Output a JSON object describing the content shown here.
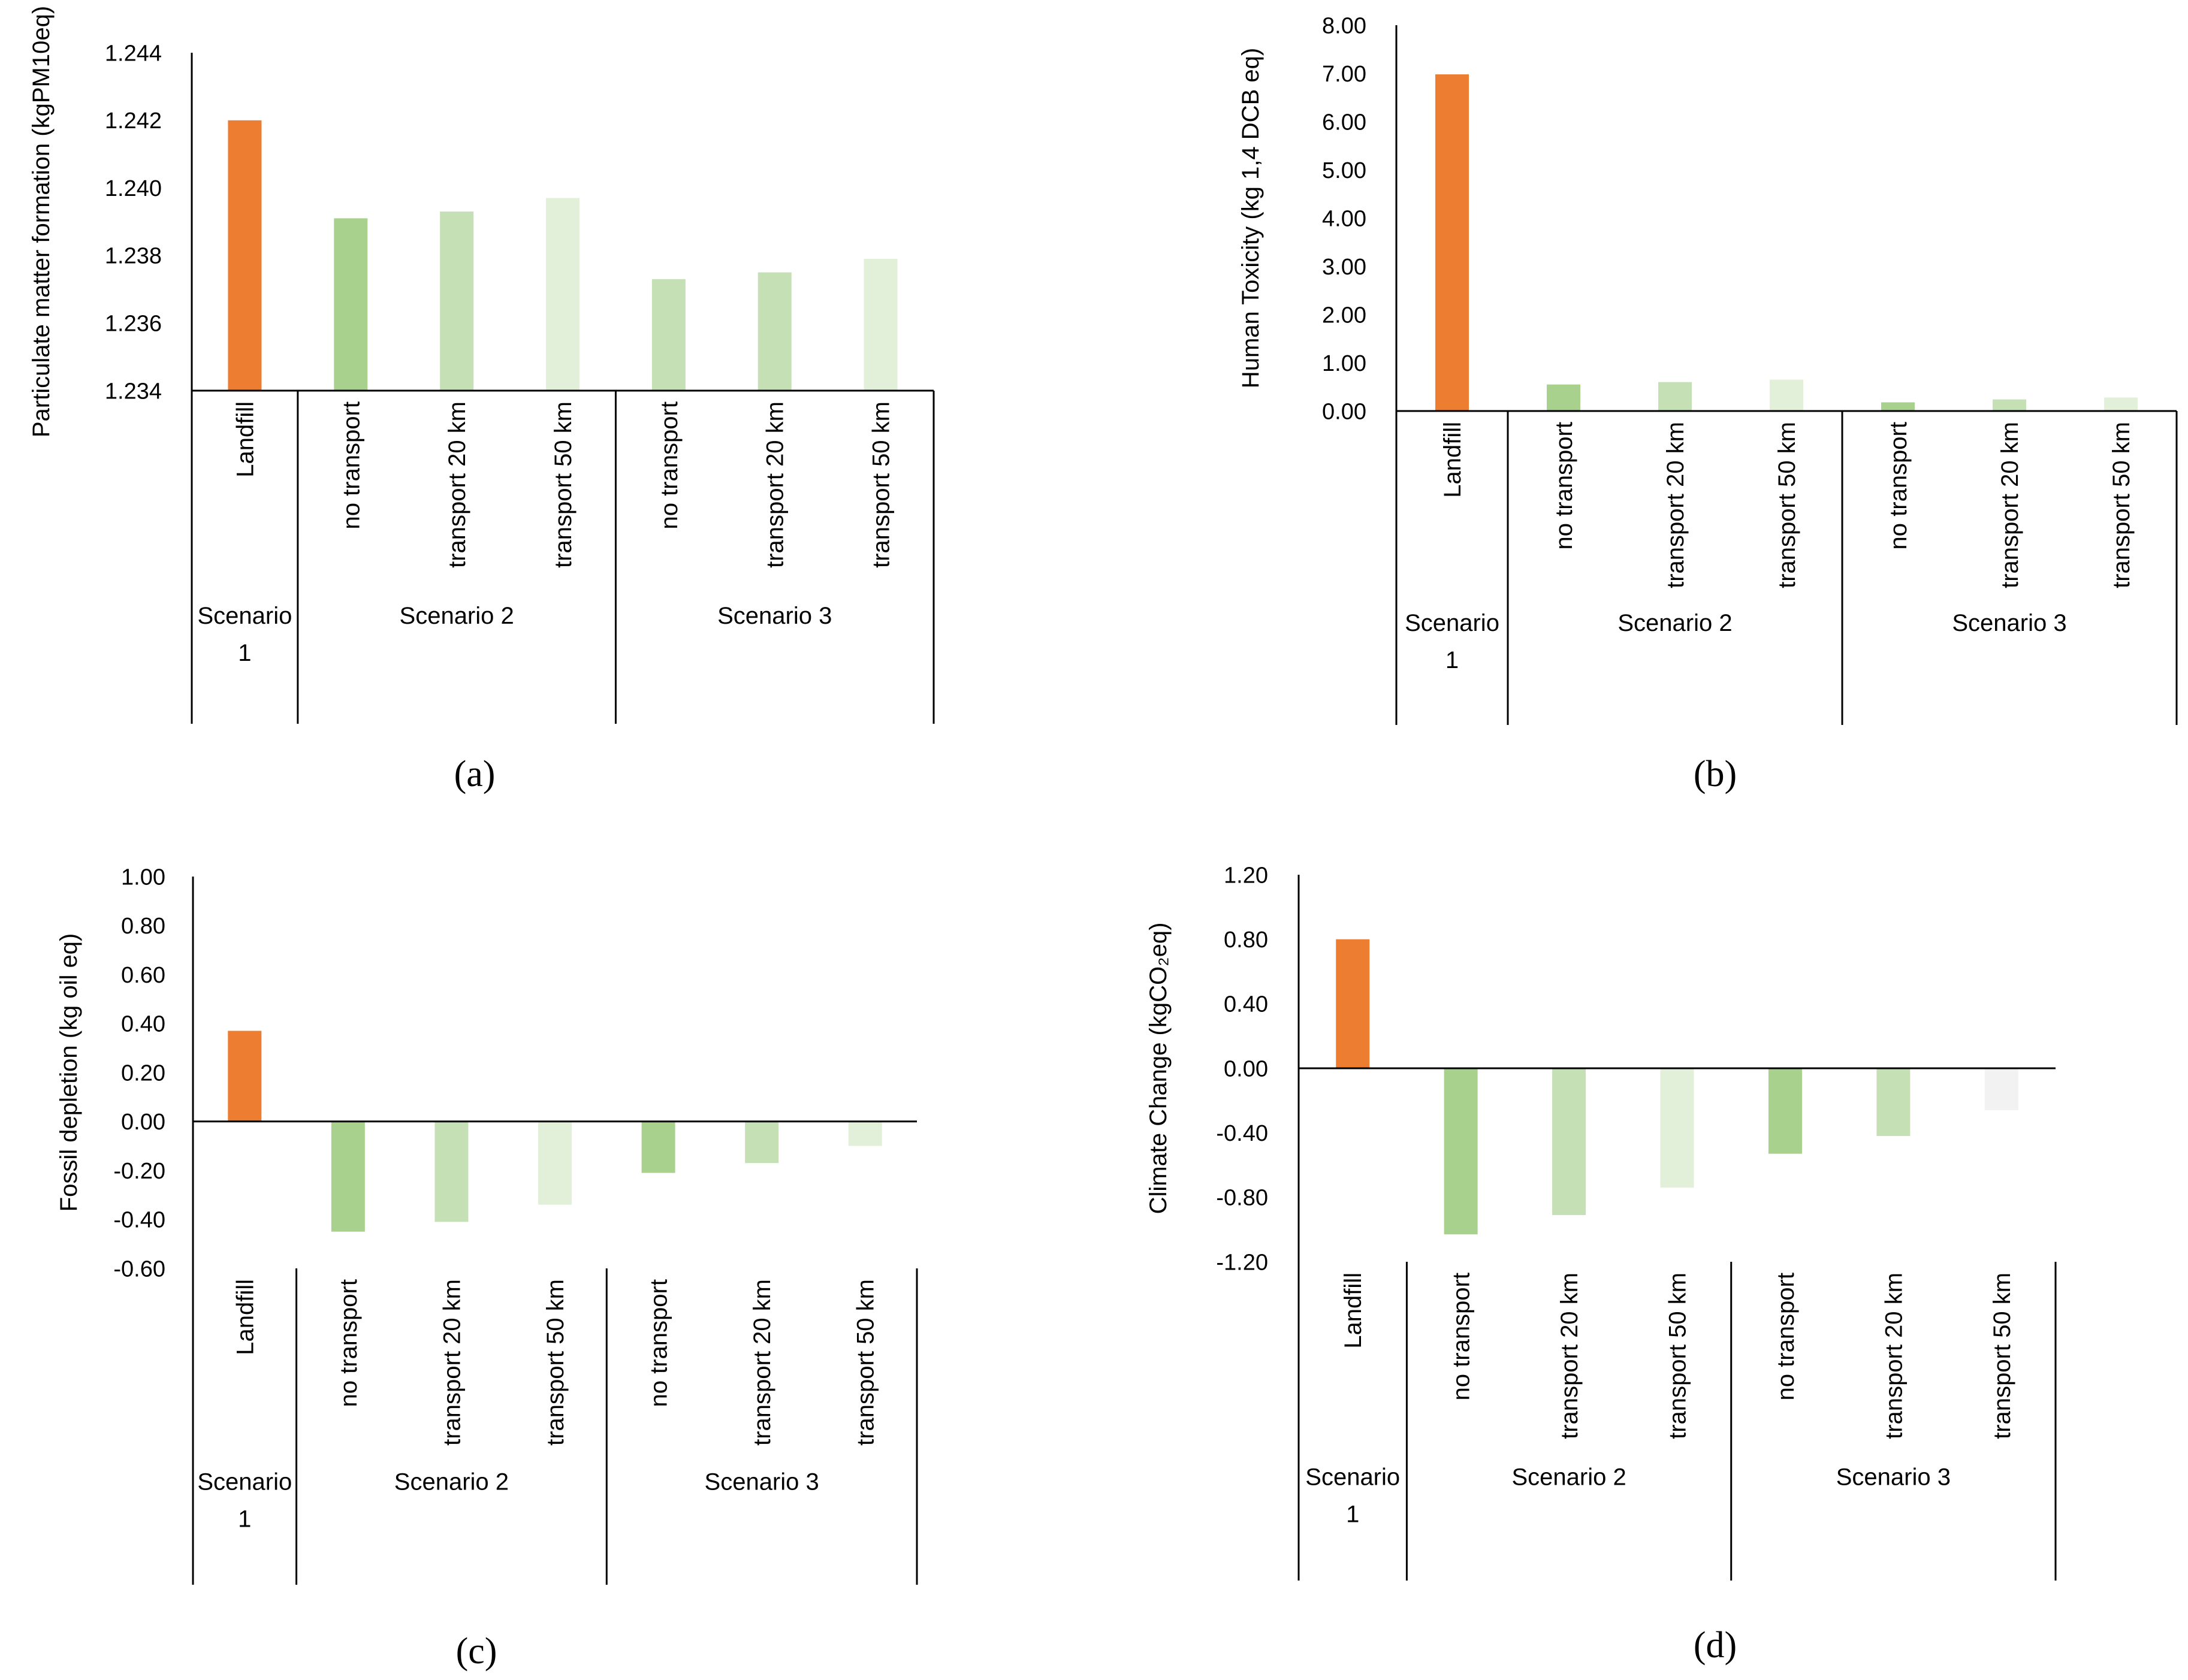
{
  "colors": {
    "landfill": "#ED7D31",
    "s_no_transport": "#A9D18E",
    "s_transport_20": "#C5E0B4",
    "s_transport_50": "#E2F0D9",
    "s3_transport_50_d": "#F2F2F2",
    "axis": "#000000"
  },
  "chart_data": [
    {
      "type": "bar",
      "panel_label": "(a)",
      "ylabel": "Particulate matter formation (kgPM10eq)",
      "ylim": [
        1.234,
        1.244
      ],
      "yticks": [
        "1.234",
        "1.236",
        "1.238",
        "1.240",
        "1.242",
        "1.244"
      ],
      "categories": [
        "Landfill",
        "no transport",
        "transport  20 km",
        "transport  50 km",
        "no transport",
        "transport  20 km",
        "transport  50 km"
      ],
      "groups": [
        {
          "name": "Scenario 1",
          "lines": [
            "Scenario",
            "1"
          ],
          "count": 1
        },
        {
          "name": "Scenario 2",
          "lines": [
            "Scenario 2"
          ],
          "count": 3
        },
        {
          "name": "Scenario 3",
          "lines": [
            "Scenario 3"
          ],
          "count": 3
        }
      ],
      "values": [
        1.242,
        1.2391,
        1.2393,
        1.2397,
        1.2373,
        1.2375,
        1.2379
      ],
      "bar_colors": [
        "landfill",
        "s_no_transport",
        "s_transport_20",
        "s_transport_50",
        "s_transport_20",
        "s_transport_20",
        "s_transport_50"
      ]
    },
    {
      "type": "bar",
      "panel_label": "(b)",
      "ylabel": "Human Toxicity (kg 1,4 DCB eq)",
      "ylim": [
        0,
        8
      ],
      "yticks": [
        "0.00",
        "1.00",
        "2.00",
        "3.00",
        "4.00",
        "5.00",
        "6.00",
        "7.00",
        "8.00"
      ],
      "categories": [
        "Landfill",
        "no transport",
        "transport  20 km",
        "transport  50 km",
        "no transport",
        "transport  20 km",
        "transport  50 km"
      ],
      "groups": [
        {
          "name": "Scenario 1",
          "lines": [
            "Scenario",
            "1"
          ],
          "count": 1
        },
        {
          "name": "Scenario 2",
          "lines": [
            "Scenario 2"
          ],
          "count": 3
        },
        {
          "name": "Scenario 3",
          "lines": [
            "Scenario 3"
          ],
          "count": 3
        }
      ],
      "values": [
        6.98,
        0.55,
        0.6,
        0.65,
        0.18,
        0.24,
        0.28
      ],
      "bar_colors": [
        "landfill",
        "s_no_transport",
        "s_transport_20",
        "s_transport_50",
        "s_no_transport",
        "s_transport_20",
        "s_transport_50"
      ]
    },
    {
      "type": "bar",
      "panel_label": "(c)",
      "ylabel": "Fossil depletion (kg oil eq)",
      "ylim": [
        -0.6,
        1.0
      ],
      "yticks": [
        "-0.60",
        "-0.40",
        "-0.20",
        "0.00",
        "0.20",
        "0.40",
        "0.60",
        "0.80",
        "1.00"
      ],
      "categories": [
        "Landfill",
        "no transport",
        "transport  20 km",
        "transport  50 km",
        "no transport",
        "transport  20 km",
        "transport  50 km"
      ],
      "groups": [
        {
          "name": "Scenario 1",
          "lines": [
            "Scenario",
            "1"
          ],
          "count": 1
        },
        {
          "name": "Scenario 2",
          "lines": [
            "Scenario 2"
          ],
          "count": 3
        },
        {
          "name": "Scenario 3",
          "lines": [
            "Scenario 3"
          ],
          "count": 3
        }
      ],
      "values": [
        0.37,
        -0.45,
        -0.41,
        -0.34,
        -0.21,
        -0.17,
        -0.1
      ],
      "bar_colors": [
        "landfill",
        "s_no_transport",
        "s_transport_20",
        "s_transport_50",
        "s_no_transport",
        "s_transport_20",
        "s_transport_50"
      ]
    },
    {
      "type": "bar",
      "panel_label": "(d)",
      "ylabel": "Climate Change (kgCO₂eq)",
      "ylim": [
        -1.2,
        1.2
      ],
      "yticks": [
        "-1.20",
        "-0.80",
        "-0.40",
        "0.00",
        "0.40",
        "0.80",
        "1.20"
      ],
      "categories": [
        "Landfill",
        "no transport",
        "transport  20 km",
        "transport  50 km",
        "no transport",
        "transport  20 km",
        "transport  50 km"
      ],
      "groups": [
        {
          "name": "Scenario 1",
          "lines": [
            "Scenario",
            "1"
          ],
          "count": 1
        },
        {
          "name": "Scenario 2",
          "lines": [
            "Scenario 2"
          ],
          "count": 3
        },
        {
          "name": "Scenario 3",
          "lines": [
            "Scenario 3"
          ],
          "count": 3
        }
      ],
      "values": [
        0.8,
        -1.03,
        -0.91,
        -0.74,
        -0.53,
        -0.42,
        -0.26
      ],
      "bar_colors": [
        "landfill",
        "s_no_transport",
        "s_transport_20",
        "s_transport_50",
        "s_no_transport",
        "s_transport_20",
        "s3_transport_50_d"
      ]
    }
  ]
}
